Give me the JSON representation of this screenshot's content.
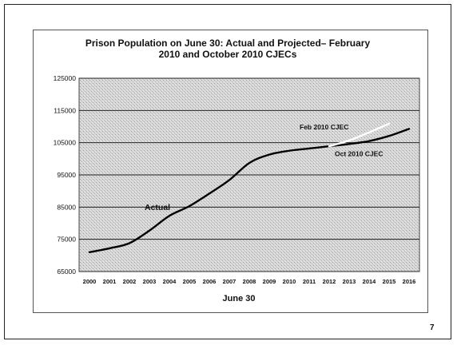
{
  "slide": {
    "page_number": "7"
  },
  "chart_data": {
    "type": "line",
    "title_lines": [
      "Prison Population on June 30:  Actual and Projected– February",
      "2010 and October 2010 CJECs"
    ],
    "xlabel": "June 30",
    "ylabel": "",
    "x": [
      "2000",
      "2001",
      "2002",
      "2003",
      "2004",
      "2005",
      "2006",
      "2007",
      "2008",
      "2009",
      "2010",
      "2011",
      "2012",
      "2013",
      "2014",
      "2015",
      "2016"
    ],
    "ylim": [
      65000,
      125000
    ],
    "yticks": [
      "125000",
      "115000",
      "105000",
      "95000",
      "85000",
      "75000",
      "65000"
    ],
    "ytick_values": [
      125000,
      115000,
      105000,
      95000,
      85000,
      75000,
      65000
    ],
    "grid": true,
    "series": [
      {
        "name": "Actual",
        "color": "#000000",
        "points": [
          [
            "2000",
            71000
          ],
          [
            "2001",
            72200
          ],
          [
            "2002",
            73800
          ],
          [
            "2003",
            77700
          ],
          [
            "2004",
            82300
          ],
          [
            "2005",
            85300
          ],
          [
            "2006",
            89200
          ],
          [
            "2007",
            93400
          ],
          [
            "2008",
            98700
          ],
          [
            "2009",
            101300
          ],
          [
            "2010",
            102500
          ],
          [
            "2011",
            103200
          ]
        ]
      },
      {
        "name": "Oct 2010 CJEC",
        "color": "#000000",
        "points": [
          [
            "2011",
            103200
          ],
          [
            "2012",
            103900
          ],
          [
            "2013",
            104600
          ],
          [
            "2014",
            105500
          ],
          [
            "2015",
            107100
          ],
          [
            "2016",
            109300
          ]
        ]
      },
      {
        "name": "Feb 2010 CJEC",
        "color": "#ffffff",
        "points": [
          [
            "2012",
            103900
          ],
          [
            "2013",
            105700
          ],
          [
            "2014",
            108200
          ],
          [
            "2015",
            110900
          ]
        ]
      }
    ],
    "annotations": [
      {
        "text": "Actual",
        "series": "Actual"
      },
      {
        "text": "Feb 2010  CJEC",
        "series": "Feb 2010 CJEC"
      },
      {
        "text": "Oct 2010  CJEC",
        "series": "Oct 2010 CJEC"
      }
    ],
    "colors": {
      "plot_background": "#cfcfcf",
      "gridline": "#222222"
    }
  }
}
